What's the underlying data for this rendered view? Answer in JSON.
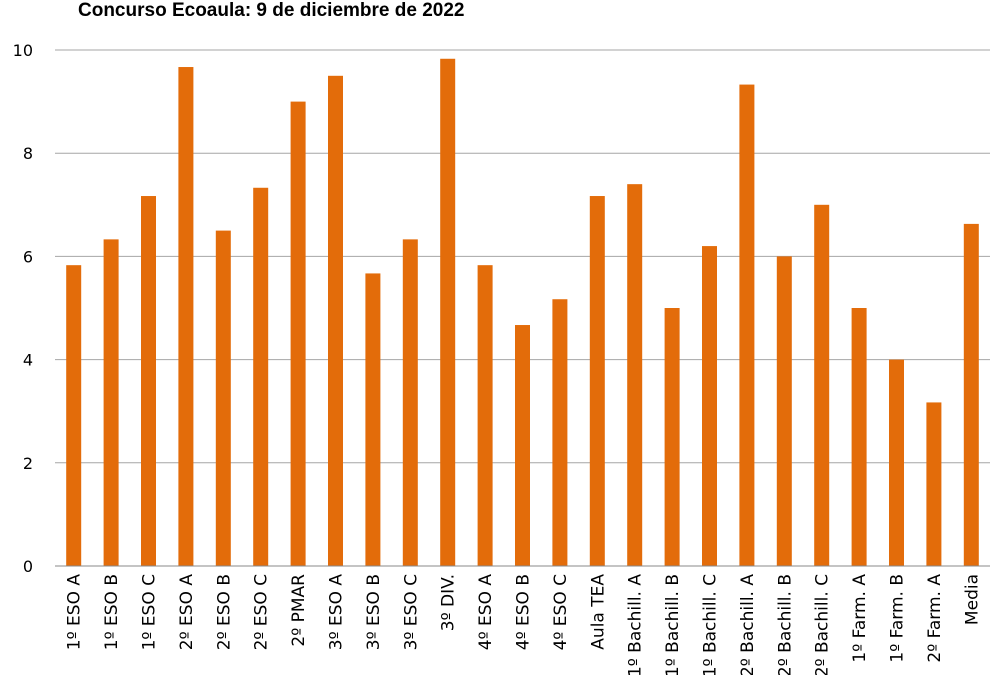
{
  "chart_data": {
    "type": "bar",
    "title": "Concurso Ecoaula: 9 de diciembre de 2022",
    "xlabel": "",
    "ylabel": "",
    "ylim": [
      0,
      10
    ],
    "yticks": [
      0,
      2,
      4,
      6,
      8,
      10
    ],
    "grid": true,
    "bar_color": "#e36c0a",
    "categories": [
      "1º ESO A",
      "1º ESO B",
      "1º ESO C",
      "2º ESO A",
      "2º ESO B",
      "2º ESO C",
      "2º PMAR",
      "3º ESO A",
      "3º ESO B",
      "3º ESO C",
      "3º DIV.",
      "4º ESO A",
      "4º ESO B",
      "4º ESO C",
      "Aula TEA",
      "1º Bachill. A",
      "1º Bachill. B",
      "1º Bachill. C",
      "2º Bachill. A",
      "2º Bachill. B",
      "2º Bachill. C",
      "1º Farm. A",
      "1º Farm. B",
      "2º Farm. A",
      "Media"
    ],
    "values": [
      5.83,
      6.33,
      7.17,
      9.67,
      6.5,
      7.33,
      9.0,
      9.5,
      5.67,
      6.33,
      9.83,
      5.83,
      4.67,
      5.17,
      7.17,
      7.4,
      5.0,
      6.2,
      9.33,
      6.0,
      7.0,
      5.0,
      4.0,
      3.17,
      6.63
    ]
  }
}
